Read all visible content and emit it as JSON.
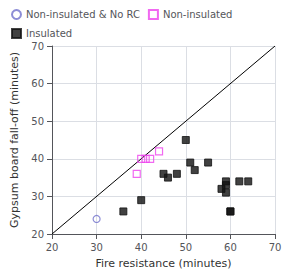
{
  "chart_data": {
    "type": "scatter",
    "title": "",
    "xlabel": "Fire resistance (minutes)",
    "ylabel": "Gypsum board fall-off (minutes)",
    "xlim": [
      20,
      70
    ],
    "ylim": [
      20,
      70
    ],
    "xticks": [
      20,
      30,
      40,
      50,
      60,
      70
    ],
    "yticks": [
      20,
      30,
      40,
      50,
      60,
      70
    ],
    "grid": true,
    "diagonal_line": {
      "x": [
        20,
        70
      ],
      "y": [
        20,
        70
      ],
      "color": "#000000"
    },
    "series": [
      {
        "name": "Non-insulated & No RC",
        "color": "#7070cc",
        "marker": "open_circle",
        "x": [
          30
        ],
        "values": [
          24
        ]
      },
      {
        "name": "Non-insulated",
        "color": "#ee44ee",
        "marker": "open_square",
        "x": [
          39,
          40,
          41,
          42,
          44
        ],
        "values": [
          36,
          40,
          40,
          40,
          42
        ]
      },
      {
        "name": "Insulated",
        "color": "#111111",
        "marker": "square",
        "x": [
          36,
          40,
          45,
          46,
          48,
          50,
          51,
          52,
          55,
          58,
          59,
          59,
          59,
          60,
          60,
          62,
          64
        ],
        "values": [
          26,
          29,
          36,
          35,
          36,
          45,
          39,
          37,
          39,
          32,
          31,
          33,
          34,
          26,
          26,
          34,
          34
        ]
      }
    ]
  }
}
